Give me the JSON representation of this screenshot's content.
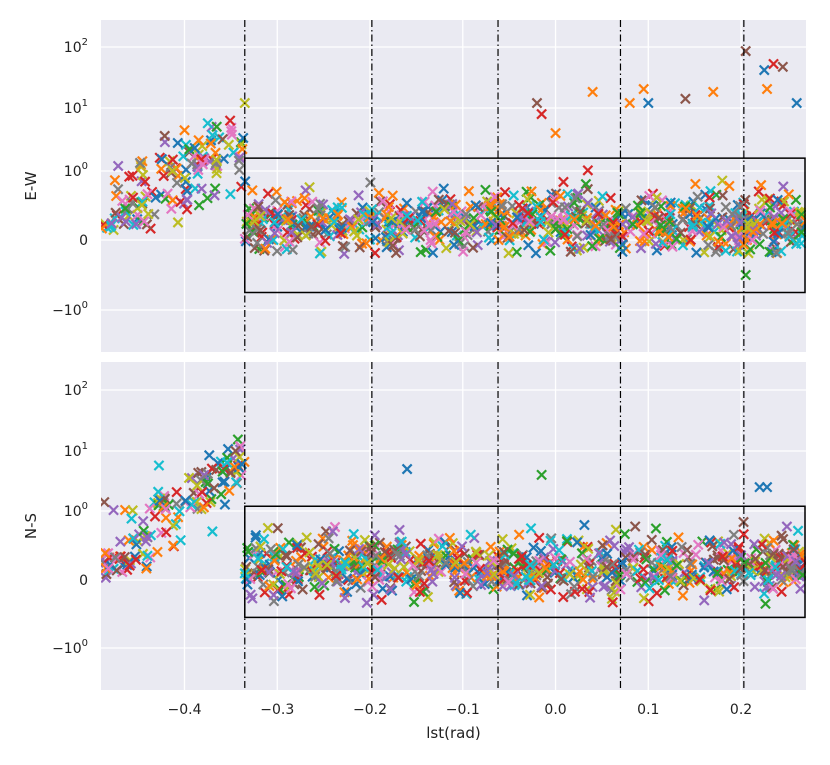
{
  "chart_data": [
    {
      "panel": "top",
      "type": "scatter",
      "marker": "x",
      "ylabel": "E-W",
      "xlabel": "",
      "xlim": [
        -0.49,
        0.27
      ],
      "yscale": "symlog",
      "ytick_values": [
        100,
        10,
        1,
        0,
        -1
      ],
      "ytick_base": "10",
      "ytick_exponents": [
        "2",
        "1",
        "0",
        "",
        "0"
      ],
      "ytick_prefix": [
        "",
        "",
        "",
        "",
        "−"
      ],
      "ytick_plain": [
        "",
        "",
        "",
        "0",
        ""
      ],
      "vlines": [
        -0.335,
        -0.198,
        -0.062,
        0.07,
        0.203
      ],
      "box": {
        "x": [
          -0.335,
          0.27
        ],
        "y": [
          -0.75,
          1.6
        ]
      },
      "scatter_left": {
        "x": [
          -0.49,
          -0.335
        ],
        "center_start": 0.3,
        "center_end": 3.0
      },
      "scatter_main": {
        "x": [
          -0.335,
          0.27
        ],
        "y_band": [
          -0.2,
          1.5
        ],
        "center": 0.25
      },
      "outliers": [
        {
          "x": -0.335,
          "y": 12,
          "color": "#bcbd22"
        },
        {
          "x": -0.02,
          "y": 12,
          "color": "#8c564b"
        },
        {
          "x": -0.015,
          "y": 8,
          "color": "#d62728"
        },
        {
          "x": 0.04,
          "y": 18,
          "color": "#ff7f0e"
        },
        {
          "x": 0.08,
          "y": 12,
          "color": "#ff7f0e"
        },
        {
          "x": 0.095,
          "y": 20,
          "color": "#ff7f0e"
        },
        {
          "x": 0.1,
          "y": 12,
          "color": "#1f77b4"
        },
        {
          "x": 0.14,
          "y": 14,
          "color": "#8c564b"
        },
        {
          "x": 0.17,
          "y": 18,
          "color": "#ff7f0e"
        },
        {
          "x": 0.205,
          "y": 80,
          "color": "#8c564b"
        },
        {
          "x": 0.225,
          "y": 40,
          "color": "#1f77b4"
        },
        {
          "x": 0.235,
          "y": 50,
          "color": "#d62728"
        },
        {
          "x": 0.245,
          "y": 45,
          "color": "#8c564b"
        },
        {
          "x": 0.228,
          "y": 20,
          "color": "#ff7f0e"
        },
        {
          "x": 0.26,
          "y": 12,
          "color": "#1f77b4"
        },
        {
          "x": 0.205,
          "y": -0.5,
          "color": "#2ca02c"
        },
        {
          "x": 0.0,
          "y": 4,
          "color": "#ff7f0e"
        }
      ]
    },
    {
      "panel": "bottom",
      "type": "scatter",
      "marker": "x",
      "ylabel": "N-S",
      "xlabel": "lst(rad)",
      "xlim": [
        -0.49,
        0.27
      ],
      "xticks": [
        -0.4,
        -0.3,
        -0.2,
        -0.1,
        0.0,
        0.1,
        0.2
      ],
      "xtick_labels": [
        "−0.4",
        "−0.3",
        "−0.2",
        "−0.1",
        "0.0",
        "0.1",
        "0.2"
      ],
      "yscale": "symlog",
      "ytick_values": [
        100,
        10,
        1,
        0,
        -1
      ],
      "ytick_base": "10",
      "ytick_exponents": [
        "2",
        "1",
        "0",
        "",
        "0"
      ],
      "ytick_prefix": [
        "",
        "",
        "",
        "",
        "−"
      ],
      "ytick_plain": [
        "",
        "",
        "",
        "0",
        ""
      ],
      "vlines": [
        -0.335,
        -0.198,
        -0.062,
        0.07,
        0.203
      ],
      "box": {
        "x": [
          -0.335,
          0.27
        ],
        "y": [
          -0.55,
          1.2
        ]
      },
      "scatter_left": {
        "x": [
          -0.49,
          -0.335
        ],
        "center_start": 0.2,
        "center_end": 7.0
      },
      "scatter_main": {
        "x": [
          -0.335,
          0.27
        ],
        "y_band": [
          -0.35,
          1.0
        ],
        "center": 0.2
      },
      "outliers": [
        {
          "x": -0.16,
          "y": 5,
          "color": "#1f77b4"
        },
        {
          "x": -0.015,
          "y": 4,
          "color": "#2ca02c"
        },
        {
          "x": 0.22,
          "y": 2.5,
          "color": "#1f77b4"
        },
        {
          "x": 0.228,
          "y": 2.5,
          "color": "#1f77b4"
        },
        {
          "x": -0.34,
          "y": 12,
          "color": "#e377c2"
        },
        {
          "x": -0.345,
          "y": 10,
          "color": "#8c564b"
        }
      ]
    }
  ],
  "palette": [
    "#1f77b4",
    "#ff7f0e",
    "#2ca02c",
    "#d62728",
    "#9467bd",
    "#8c564b",
    "#e377c2",
    "#7f7f7f",
    "#bcbd22",
    "#17becf"
  ]
}
